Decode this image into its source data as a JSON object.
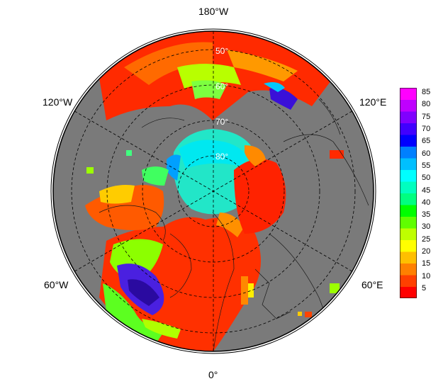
{
  "longitude_labels": {
    "top": "180°W",
    "upper_left": "120°W",
    "upper_right": "120°E",
    "lower_left": "60°W",
    "lower_right": "60°E",
    "bottom": "0°"
  },
  "latitude_labels": [
    "50°",
    "60°",
    "70°",
    "80°"
  ],
  "colorbar": {
    "ticks": [
      "85",
      "80",
      "75",
      "70",
      "65",
      "60",
      "55",
      "50",
      "45",
      "40",
      "35",
      "30",
      "25",
      "20",
      "15",
      "10",
      "5"
    ],
    "colors": [
      "#ff0000",
      "#ff4000",
      "#ff8000",
      "#ffbf00",
      "#ffff00",
      "#bfff00",
      "#60ff00",
      "#00ff00",
      "#00ff80",
      "#00ffbf",
      "#00ffff",
      "#00bfff",
      "#0080ff",
      "#0000ff",
      "#4000ff",
      "#8000ff",
      "#bf00ff",
      "#ff00ff"
    ]
  },
  "colors": {
    "land": "#7a7a7a",
    "background": "#ffffff",
    "grid": "#000000"
  }
}
